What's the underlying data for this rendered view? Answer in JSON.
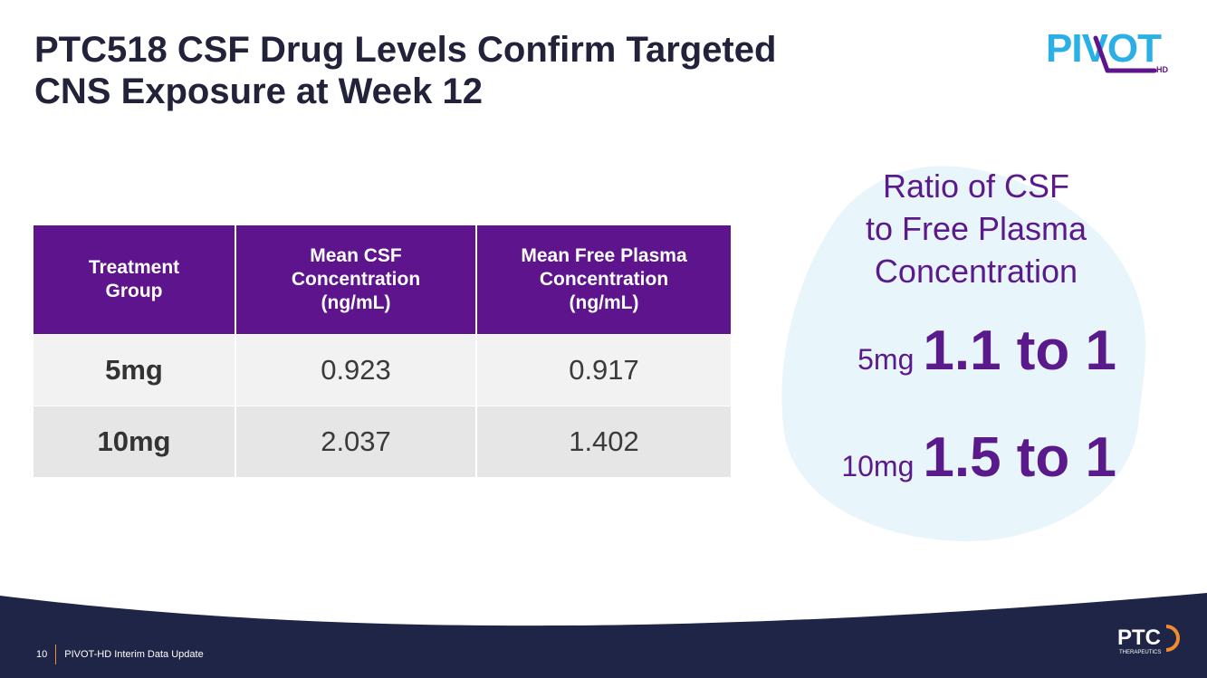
{
  "slide": {
    "title_line1": "PTC518 CSF Drug Levels Confirm Targeted",
    "title_line2": "CNS Exposure at Week 12"
  },
  "logo": {
    "pivot_text": "PIVOT",
    "pivot_sub": "HD",
    "ptc_text": "PTC",
    "ptc_sub": "THERAPEUTICS"
  },
  "table": {
    "headers": [
      [
        "Treatment",
        "Group"
      ],
      [
        "Mean CSF",
        "Concentration",
        "(ng/mL)"
      ],
      [
        "Mean Free Plasma",
        "Concentration",
        "(ng/mL)"
      ]
    ],
    "rows": [
      {
        "group": "5mg",
        "csf": "0.923",
        "plasma": "0.917"
      },
      {
        "group": "10mg",
        "csf": "2.037",
        "plasma": "1.402"
      }
    ]
  },
  "ratio": {
    "heading_lines": [
      "Ratio of CSF",
      "to Free Plasma",
      "Concentration"
    ],
    "items": [
      {
        "dose": "5mg",
        "value": "1.1 to 1"
      },
      {
        "dose": "10mg",
        "value": "1.5 to 1"
      }
    ]
  },
  "footer": {
    "page_number": "10",
    "label": "PIVOT-HD Interim Data Update"
  },
  "colors": {
    "accent_purple": "#5e148c",
    "pivot_blue": "#2ab0e6",
    "footer_navy": "#1f2546",
    "ptc_orange": "#f28a2e"
  }
}
